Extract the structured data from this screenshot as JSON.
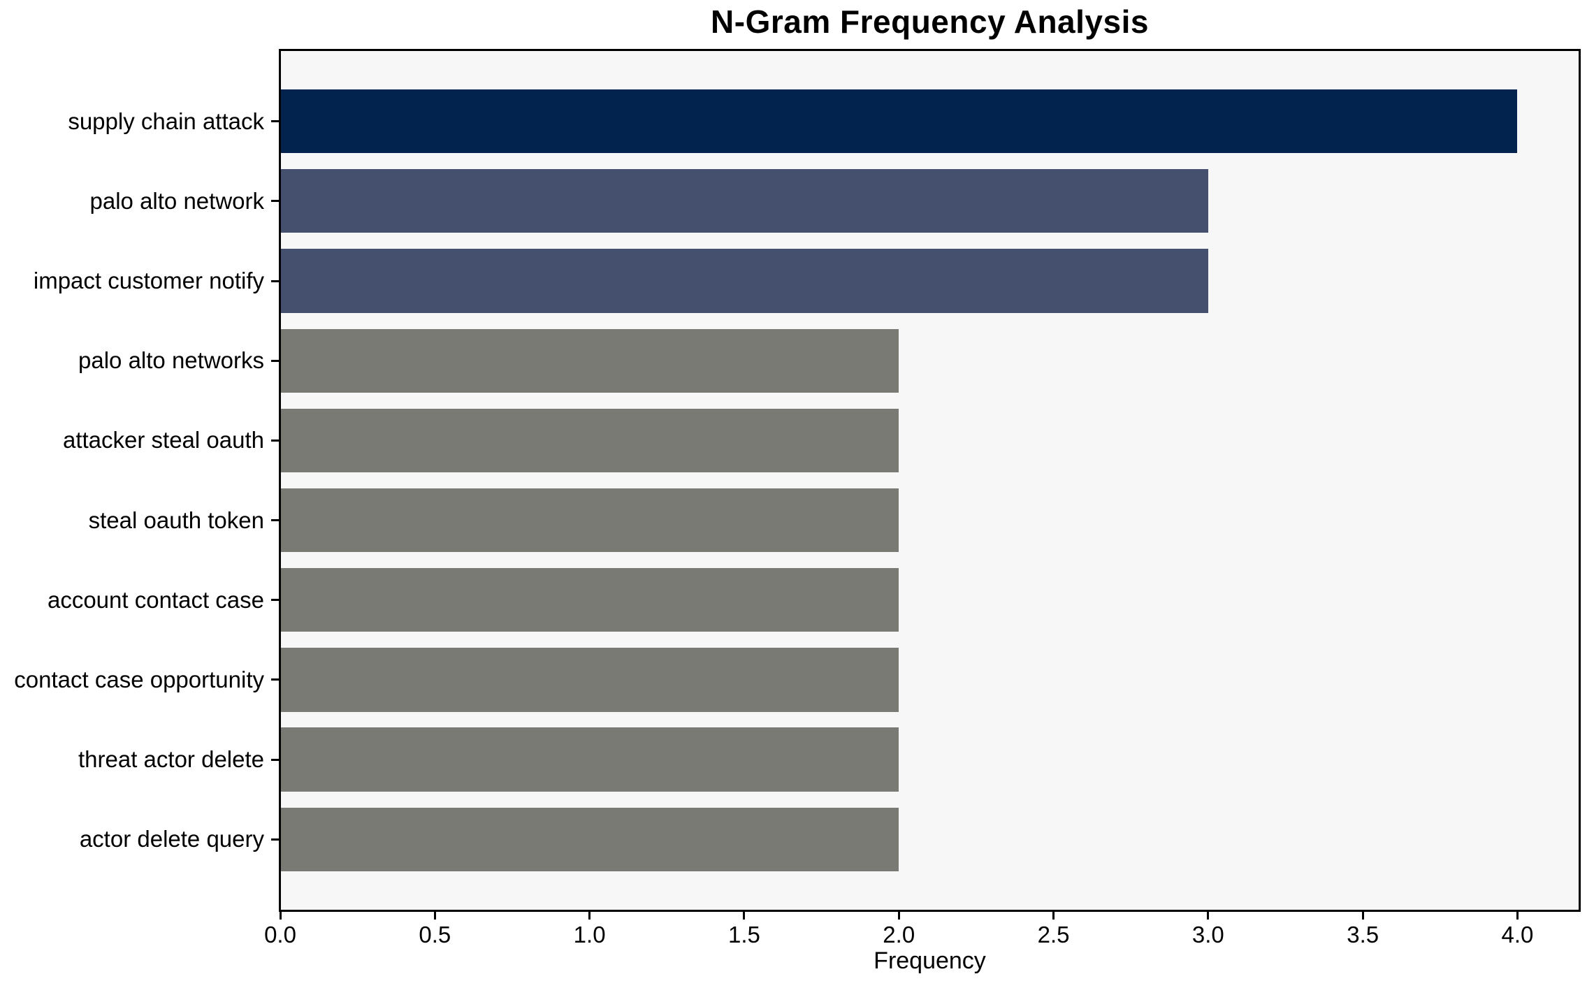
{
  "chart_data": {
    "type": "bar",
    "orientation": "horizontal",
    "title": "N-Gram Frequency Analysis",
    "xlabel": "Frequency",
    "ylabel": "",
    "categories": [
      "supply chain attack",
      "palo alto network",
      "impact customer notify",
      "palo alto networks",
      "attacker steal oauth",
      "steal oauth token",
      "account contact case",
      "contact case opportunity",
      "threat actor delete",
      "actor delete query"
    ],
    "values": [
      4,
      3,
      3,
      2,
      2,
      2,
      2,
      2,
      2,
      2
    ],
    "bar_colors": [
      "#02234d",
      "#45506e",
      "#45506e",
      "#7a7a75",
      "#7a7a75",
      "#7a7a75",
      "#7a7a75",
      "#7a7a75",
      "#7a7a75",
      "#7a7a75"
    ],
    "xticks": [
      0,
      0.5,
      1,
      1.5,
      2,
      2.5,
      3,
      3.5,
      4
    ],
    "xtick_labels": [
      "0.0",
      "0.5",
      "1.0",
      "1.5",
      "2.0",
      "2.5",
      "3.0",
      "3.5",
      "4.0"
    ],
    "xlim": [
      0,
      4.2
    ],
    "grid": false,
    "legend": false,
    "colors": {
      "plot_background": "#f7f7f7",
      "figure_background": "#ffffff",
      "axis": "#000000",
      "text": "#000000"
    }
  }
}
